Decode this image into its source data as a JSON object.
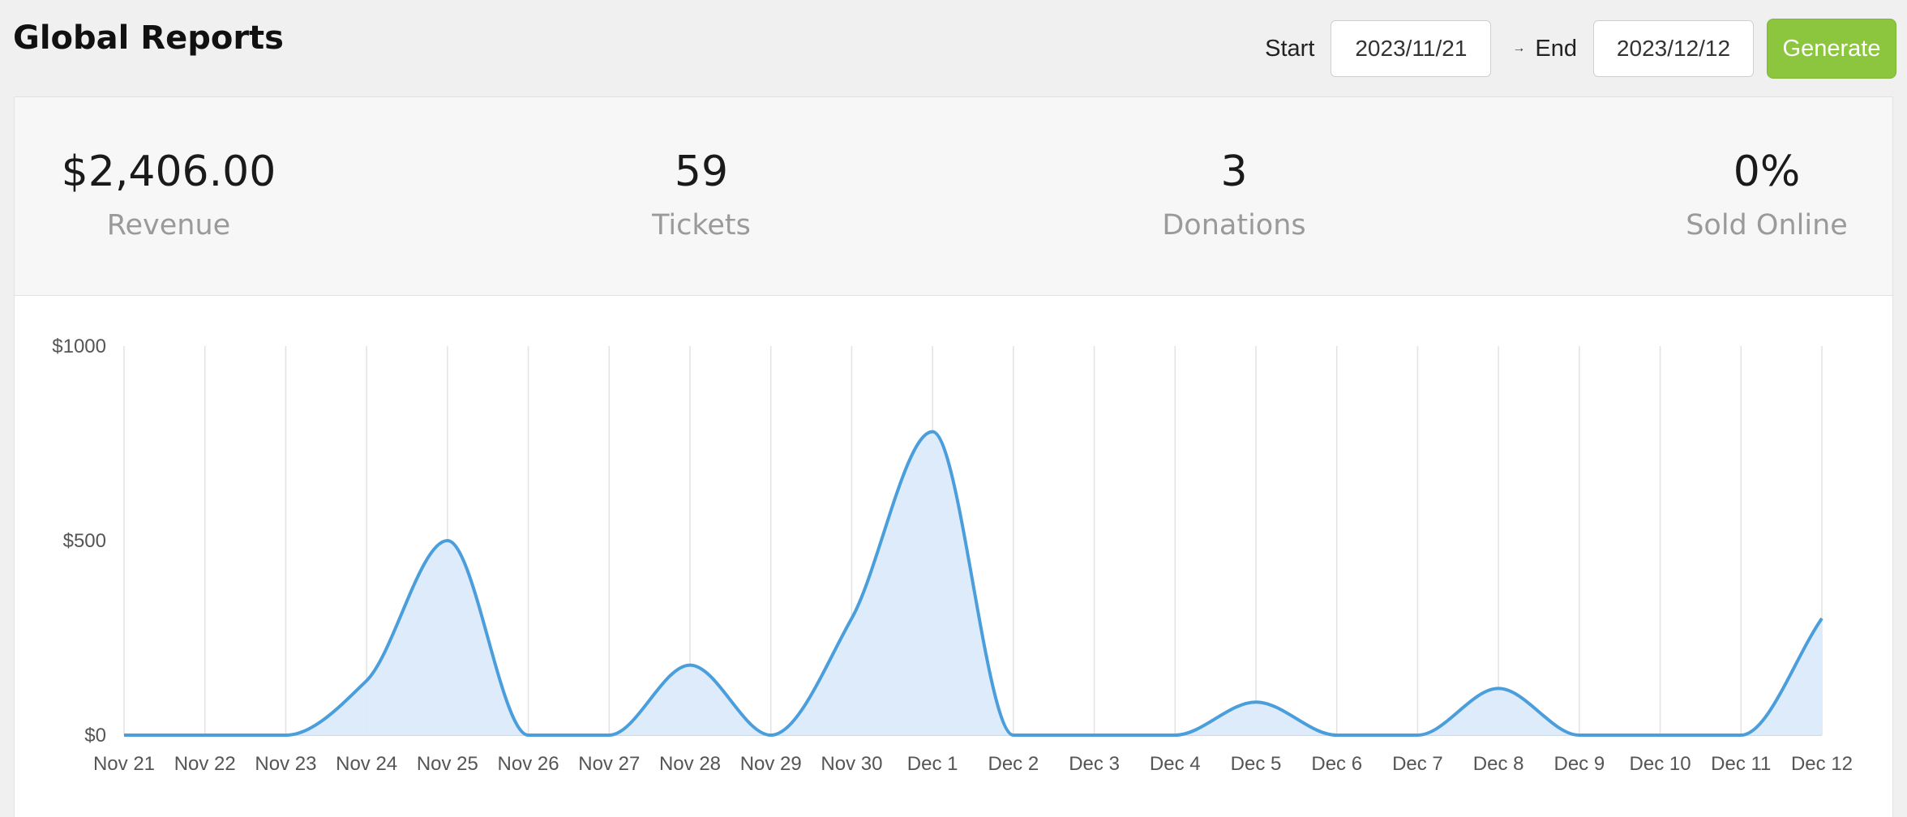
{
  "header": {
    "title": "Global Reports",
    "start_label": "Start",
    "start_value": "2023/11/21",
    "arrow": "→",
    "end_label": "End",
    "end_value": "2023/12/12",
    "generate_label": "Generate"
  },
  "stats": [
    {
      "value": "$2,406.00",
      "label": "Revenue"
    },
    {
      "value": "59",
      "label": "Tickets"
    },
    {
      "value": "3",
      "label": "Donations"
    },
    {
      "value": "0%",
      "label": "Sold Online"
    }
  ],
  "colors": {
    "accent_green": "#8cc63f",
    "line": "#4a9edc",
    "area": "#dbeafa"
  },
  "chart_data": {
    "type": "area",
    "categories": [
      "Nov 21",
      "Nov 22",
      "Nov 23",
      "Nov 24",
      "Nov 25",
      "Nov 26",
      "Nov 27",
      "Nov 28",
      "Nov 29",
      "Nov 30",
      "Dec 1",
      "Dec 2",
      "Dec 3",
      "Dec 4",
      "Dec 5",
      "Dec 6",
      "Dec 7",
      "Dec 8",
      "Dec 9",
      "Dec 10",
      "Dec 11",
      "Dec 12"
    ],
    "values": [
      0,
      0,
      0,
      140,
      500,
      0,
      0,
      180,
      0,
      300,
      780,
      0,
      0,
      0,
      85,
      0,
      0,
      120,
      0,
      0,
      0,
      300
    ],
    "ylim": [
      0,
      1000
    ],
    "yticks": [
      0,
      500,
      1000
    ],
    "ytick_labels": [
      "$0",
      "$500",
      "$1000"
    ],
    "grid": "vertical",
    "title": "",
    "xlabel": "",
    "ylabel": ""
  }
}
